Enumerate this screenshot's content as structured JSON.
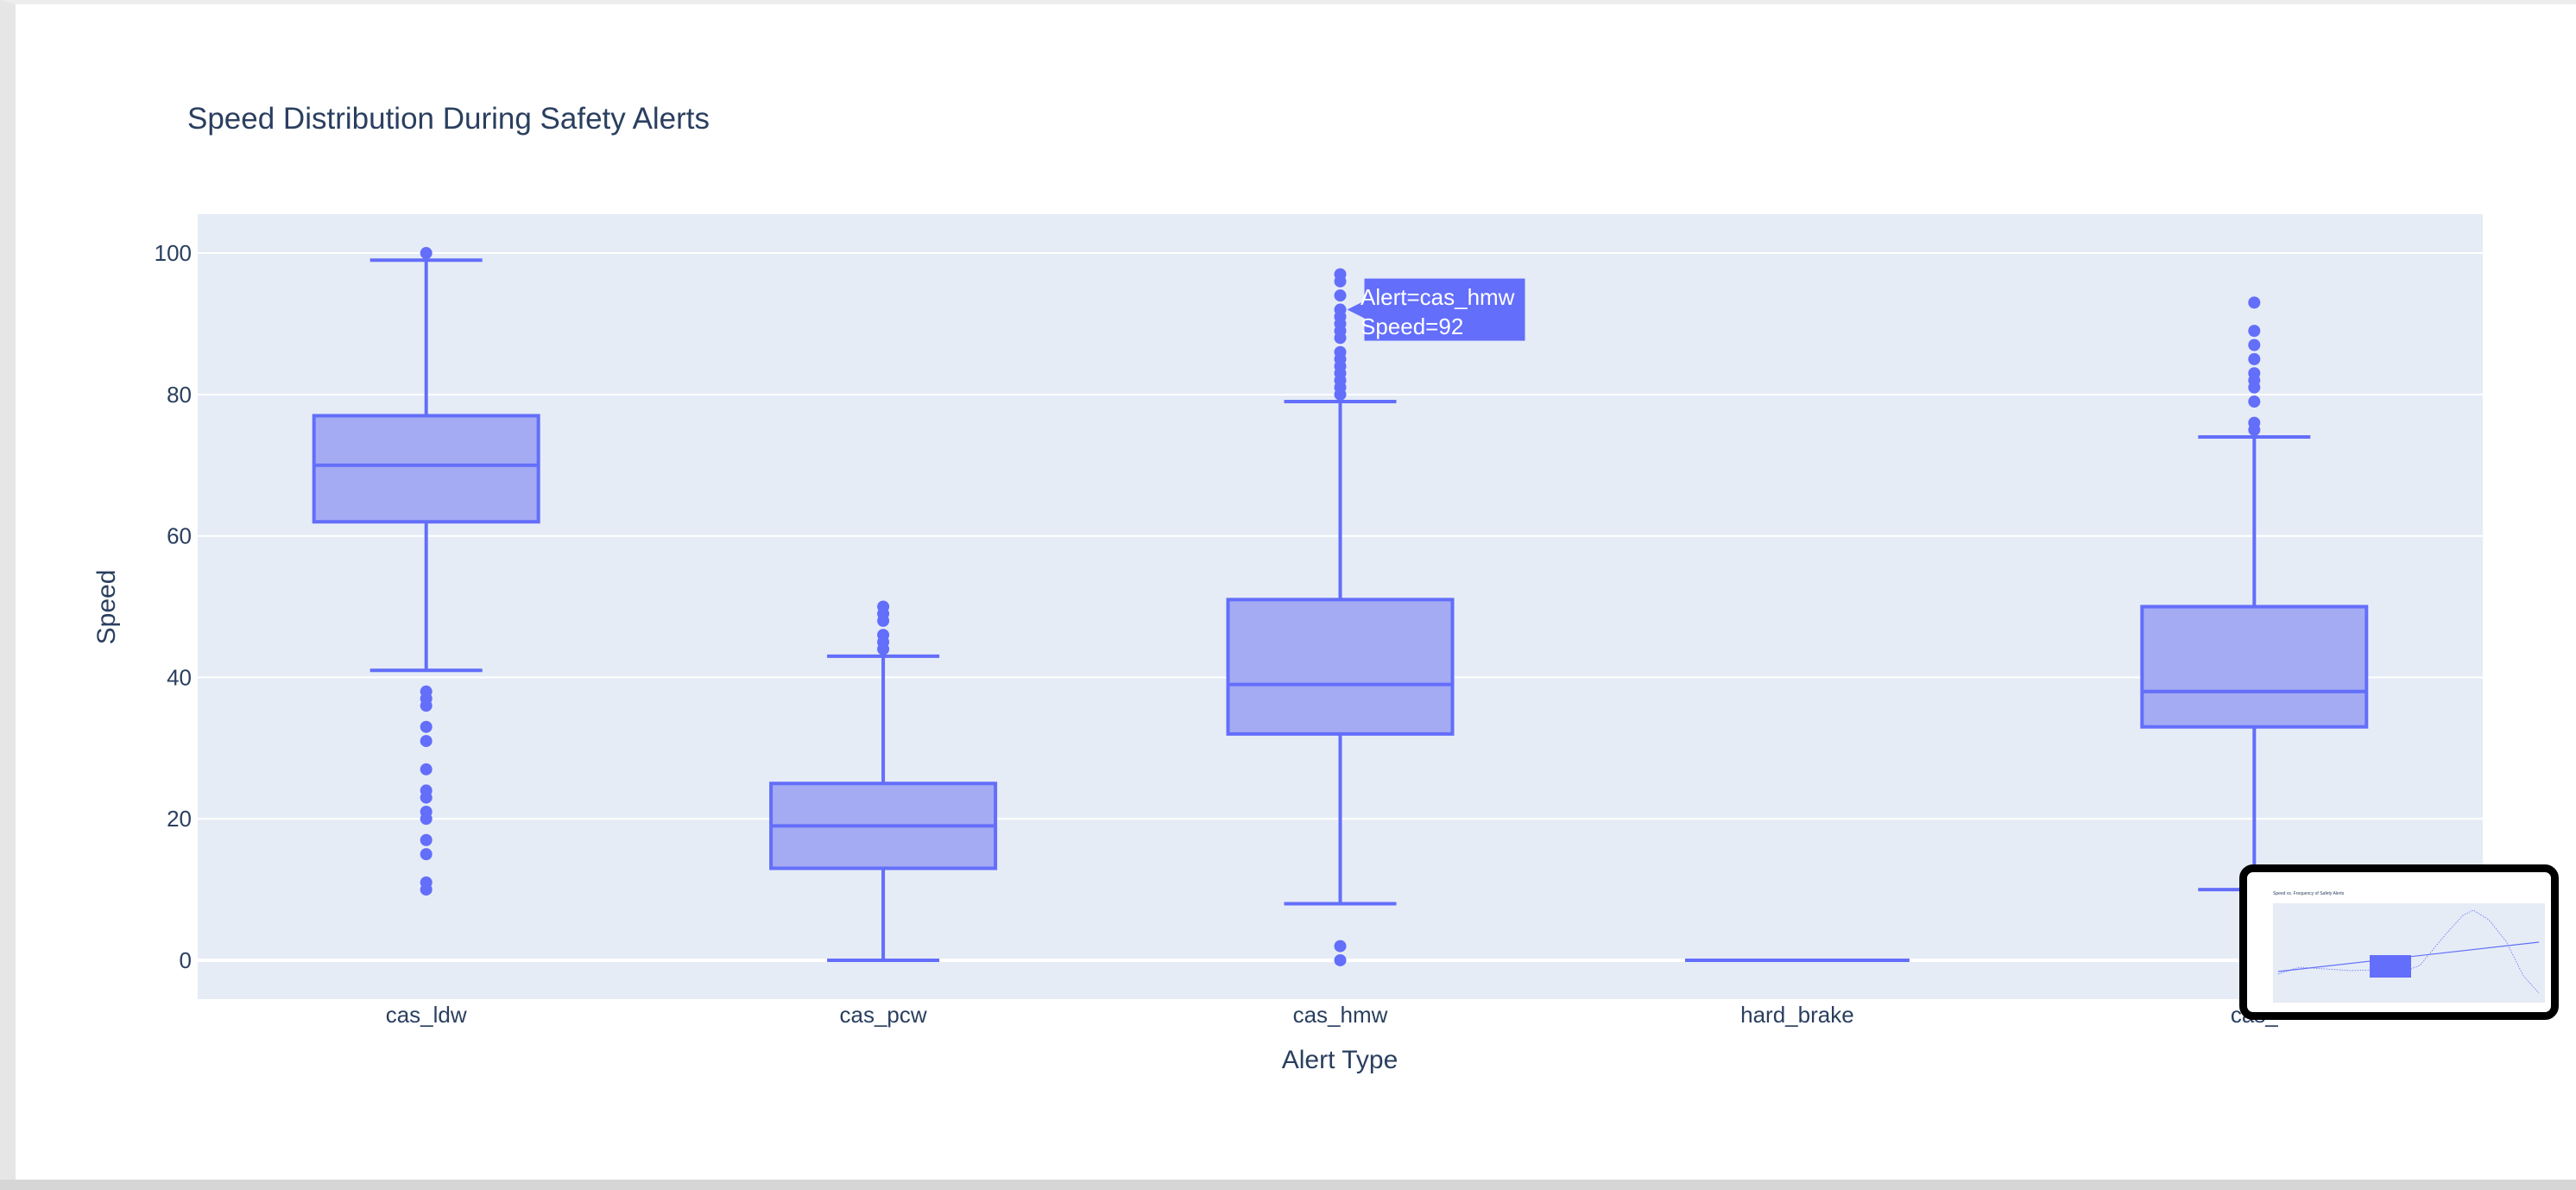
{
  "chart_data": {
    "type": "box",
    "title": "Speed Distribution During Safety Alerts",
    "xlabel": "Alert Type",
    "ylabel": "Speed",
    "ylim": [
      -5.5,
      105.5
    ],
    "yticks": [
      0,
      20,
      40,
      60,
      80,
      100
    ],
    "grid": true,
    "color": "#636efa",
    "fill_color": "#a4abf3",
    "plot_background": "#e5ecf6",
    "categories": [
      "cas_ldw",
      "cas_pcw",
      "cas_hmw",
      "hard_brake",
      "cas_"
    ],
    "boxes": [
      {
        "category": "cas_ldw",
        "lower_fence": 41,
        "q1": 62,
        "median": 70,
        "q3": 77,
        "upper_fence": 99,
        "outliers": [
          100,
          38,
          37,
          36,
          33,
          31,
          27,
          24,
          23,
          21,
          20,
          17,
          15,
          11,
          10
        ]
      },
      {
        "category": "cas_pcw",
        "lower_fence": 0,
        "q1": 13,
        "median": 19,
        "q3": 25,
        "upper_fence": 43,
        "outliers": [
          50,
          49,
          48,
          46,
          45,
          44
        ]
      },
      {
        "category": "cas_hmw",
        "lower_fence": 8,
        "q1": 32,
        "median": 39,
        "q3": 51,
        "upper_fence": 79,
        "outliers": [
          97,
          96,
          94,
          92,
          91,
          90,
          89,
          88,
          86,
          85,
          84,
          83,
          82,
          81,
          80,
          2,
          0
        ]
      },
      {
        "category": "hard_brake",
        "lower_fence": 0,
        "q1": 0,
        "median": 0,
        "q3": 0,
        "upper_fence": 0,
        "outliers": []
      },
      {
        "category": "cas_",
        "lower_fence": 10,
        "q1": 33,
        "median": 38,
        "q3": 50,
        "upper_fence": 74,
        "outliers": [
          93,
          89,
          87,
          85,
          83,
          82,
          81,
          79,
          76,
          75
        ]
      }
    ],
    "hover_tooltip": {
      "category": "cas_hmw",
      "value": 92,
      "line1": "Alert=cas_hmw",
      "line2": "Speed=92"
    }
  },
  "thumbnail": {
    "title": "Speed vs. Frequency of Safety Alerts"
  }
}
